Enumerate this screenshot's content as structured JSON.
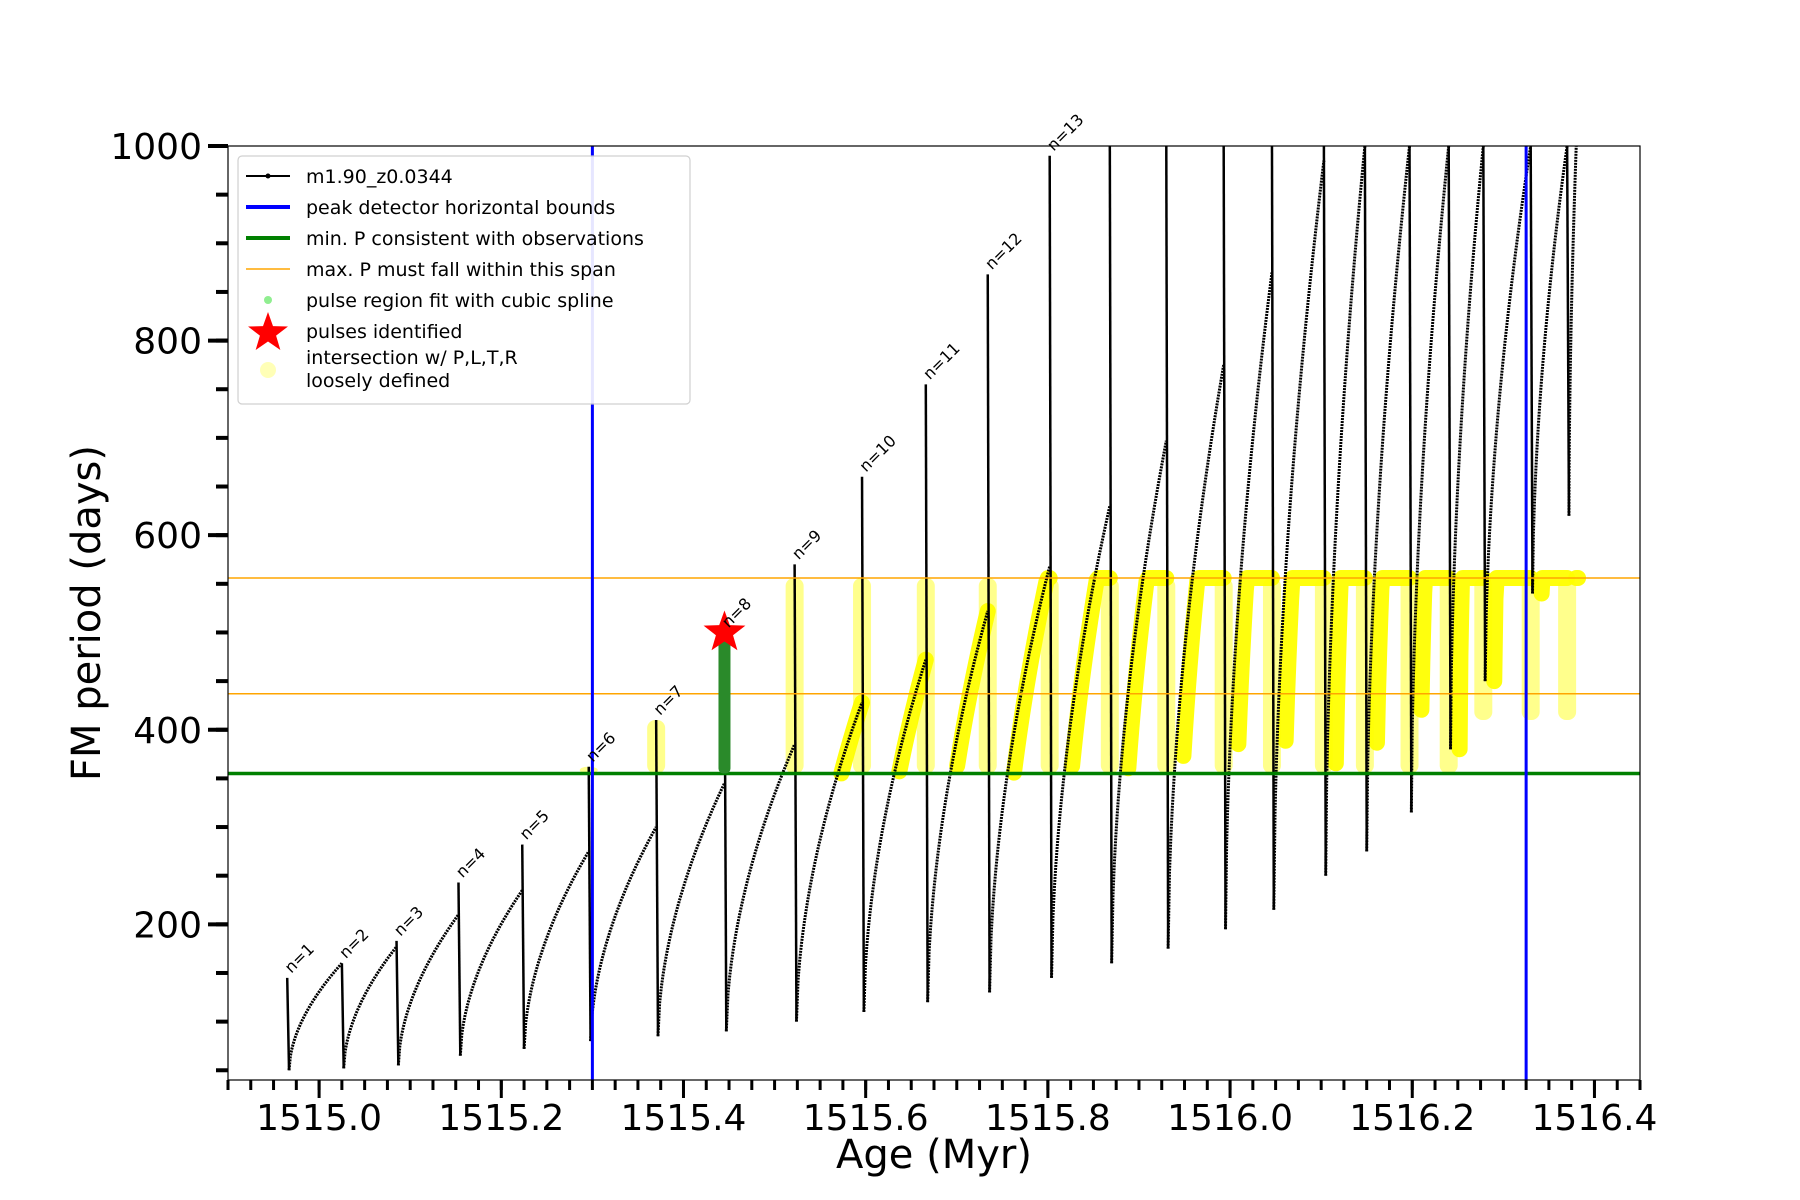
{
  "chart_data": {
    "type": "line",
    "xlabel": "Age (Myr)",
    "ylabel": "FM period (days)",
    "xlim": [
      1514.9,
      1516.45
    ],
    "ylim": [
      40,
      1000
    ],
    "x_ticks": [
      1515.0,
      1515.2,
      1515.4,
      1515.6,
      1515.8,
      1516.0,
      1516.2,
      1516.4
    ],
    "x_tick_labels": [
      "1515.0",
      "1515.2",
      "1515.4",
      "1515.6",
      "1515.8",
      "1516.0",
      "1516.2",
      "1516.4"
    ],
    "y_ticks": [
      200,
      400,
      600,
      800,
      1000
    ],
    "y_tick_labels": [
      "200",
      "400",
      "600",
      "800",
      "1000"
    ],
    "grid": false,
    "legend_position": "upper-left",
    "legend": [
      {
        "label": "m1.90_z0.0344",
        "style": "black-line-dots"
      },
      {
        "label": "peak detector horizontal bounds",
        "style": "blue-line"
      },
      {
        "label": "min. P consistent with observations",
        "style": "green-line"
      },
      {
        "label": "max. P must fall within this span",
        "style": "orange-line"
      },
      {
        "label": "pulse region fit with cubic spline",
        "style": "lightgreen-dot"
      },
      {
        "label": "pulses identified",
        "style": "red-star"
      },
      {
        "label": "intersection w/ P,L,T,R",
        "label2": "loosely defined",
        "style": "yellow-circle"
      }
    ],
    "reference_lines": {
      "vertical_blue": [
        1515.3,
        1516.325
      ],
      "horizontal_green": 355,
      "horizontal_orange": [
        437,
        556
      ]
    },
    "pulses": [
      {
        "label": "n=1",
        "x": 1514.965,
        "peak": 145,
        "min": 50,
        "end_x": 1515.025,
        "end_p": 160
      },
      {
        "label": "n=2",
        "x": 1515.025,
        "peak": 160,
        "min": 52,
        "end_x": 1515.085,
        "end_p": 177
      },
      {
        "label": "n=3",
        "x": 1515.085,
        "peak": 183,
        "min": 55,
        "end_x": 1515.153,
        "end_p": 210
      },
      {
        "label": "n=4",
        "x": 1515.153,
        "peak": 243,
        "min": 65,
        "end_x": 1515.223,
        "end_p": 235
      },
      {
        "label": "n=5",
        "x": 1515.223,
        "peak": 282,
        "min": 72,
        "end_x": 1515.296,
        "end_p": 275
      },
      {
        "label": "n=6",
        "x": 1515.296,
        "peak": 362,
        "min": 80,
        "end_x": 1515.37,
        "end_p": 300
      },
      {
        "label": "n=7",
        "x": 1515.37,
        "peak": 410,
        "min": 85,
        "end_x": 1515.445,
        "end_p": 345
      },
      {
        "label": "n=8",
        "x": 1515.445,
        "peak": 500,
        "min": 90,
        "end_x": 1515.522,
        "end_p": 385
      },
      {
        "label": "n=9",
        "x": 1515.522,
        "peak": 570,
        "min": 100,
        "end_x": 1515.596,
        "end_p": 428
      },
      {
        "label": "n=10",
        "x": 1515.596,
        "peak": 660,
        "min": 110,
        "end_x": 1515.666,
        "end_p": 472
      },
      {
        "label": "n=11",
        "x": 1515.666,
        "peak": 755,
        "min": 120,
        "end_x": 1515.734,
        "end_p": 522
      },
      {
        "label": "n=12",
        "x": 1515.734,
        "peak": 868,
        "min": 130,
        "end_x": 1515.802,
        "end_p": 568
      },
      {
        "label": "n=13",
        "x": 1515.802,
        "peak": 990,
        "min": 145,
        "end_x": 1515.868,
        "end_p": 630
      },
      {
        "label": "",
        "x": 1515.868,
        "peak": 1000,
        "min": 160,
        "end_x": 1515.93,
        "end_p": 697
      },
      {
        "label": "",
        "x": 1515.93,
        "peak": 1000,
        "min": 175,
        "end_x": 1515.993,
        "end_p": 775
      },
      {
        "label": "",
        "x": 1515.993,
        "peak": 1000,
        "min": 195,
        "end_x": 1516.046,
        "end_p": 870
      },
      {
        "label": "",
        "x": 1516.046,
        "peak": 1000,
        "min": 215,
        "end_x": 1516.103,
        "end_p": 985
      },
      {
        "label": "",
        "x": 1516.103,
        "peak": 1000,
        "min": 250,
        "end_x": 1516.148,
        "end_p": 1000
      },
      {
        "label": "",
        "x": 1516.148,
        "peak": 1000,
        "min": 275,
        "end_x": 1516.197,
        "end_p": 1000
      },
      {
        "label": "",
        "x": 1516.197,
        "peak": 1000,
        "min": 315,
        "end_x": 1516.24,
        "end_p": 1000
      },
      {
        "label": "",
        "x": 1516.24,
        "peak": 1000,
        "min": 380,
        "end_x": 1516.278,
        "end_p": 1000
      },
      {
        "label": "",
        "x": 1516.278,
        "peak": 1000,
        "min": 450,
        "end_x": 1516.33,
        "end_p": 1000
      },
      {
        "label": "",
        "x": 1516.33,
        "peak": 1000,
        "min": 540,
        "end_x": 1516.37,
        "end_p": 1000
      },
      {
        "label": "",
        "x": 1516.37,
        "peak": 1000,
        "min": 620,
        "end_x": 1516.38,
        "end_p": 1000
      }
    ],
    "identified_pulse": {
      "x": 1515.445,
      "y": 500,
      "label": "n=8"
    },
    "spline_region": {
      "x": 1515.445,
      "y_from": 355,
      "y_to": 500
    }
  }
}
